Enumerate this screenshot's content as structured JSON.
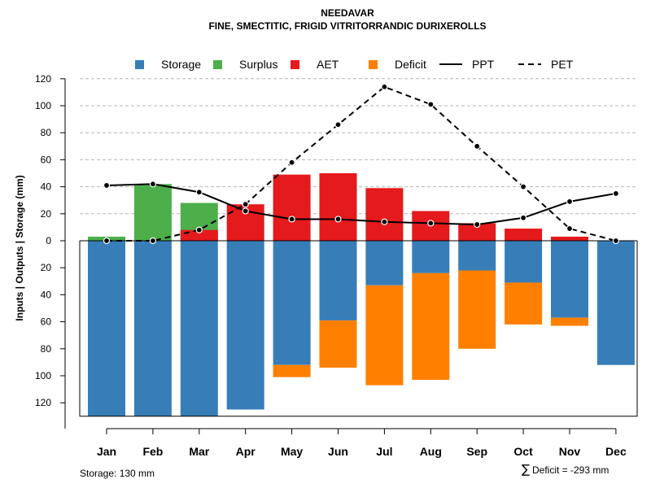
{
  "chart_data": {
    "type": "bar",
    "title": "NEEDAVAR",
    "subtitle": "FINE, SMECTITIC, FRIGID VITRITORRANDIC DURIXEROLLS",
    "ylabel": "Inputs | Outputs | Storage    (mm)",
    "ylim": [
      -130,
      120
    ],
    "yticks": [
      {
        "value": 120,
        "label": "120"
      },
      {
        "value": 100,
        "label": "100"
      },
      {
        "value": 80,
        "label": "80"
      },
      {
        "value": 60,
        "label": "60"
      },
      {
        "value": 40,
        "label": "40"
      },
      {
        "value": 20,
        "label": "20"
      },
      {
        "value": 0,
        "label": "0"
      },
      {
        "value": -20,
        "label": "20"
      },
      {
        "value": -40,
        "label": "40"
      },
      {
        "value": -60,
        "label": "60"
      },
      {
        "value": -80,
        "label": "80"
      },
      {
        "value": -100,
        "label": "100"
      },
      {
        "value": -120,
        "label": "120"
      }
    ],
    "categories": [
      "Jan",
      "Feb",
      "Mar",
      "Apr",
      "May",
      "Jun",
      "Jul",
      "Aug",
      "Sep",
      "Oct",
      "Nov",
      "Dec"
    ],
    "grid": true,
    "legend_position": "top",
    "series": [
      {
        "name": "Storage",
        "kind": "bar",
        "color": "#377EB8",
        "values": [
          130,
          130,
          130,
          125,
          92,
          59,
          33,
          24,
          22,
          31,
          57,
          92
        ]
      },
      {
        "name": "Surplus",
        "kind": "bar",
        "color": "#4DAF4A",
        "values": [
          3,
          42,
          28,
          0,
          0,
          0,
          0,
          0,
          0,
          0,
          0,
          0
        ]
      },
      {
        "name": "AET",
        "kind": "bar",
        "color": "#E41A1C",
        "values": [
          0,
          0,
          8,
          27,
          49,
          50,
          39,
          22,
          13,
          9,
          3,
          0
        ]
      },
      {
        "name": "Deficit",
        "kind": "bar",
        "color": "#FF7F00",
        "values": [
          0,
          0,
          0,
          0,
          9,
          35,
          74,
          79,
          58,
          31,
          6,
          0
        ]
      },
      {
        "name": "PPT",
        "kind": "line",
        "style": "solid",
        "color": "#000000",
        "values": [
          41,
          42,
          36,
          22,
          16,
          16,
          14,
          13,
          12,
          17,
          29,
          35
        ]
      },
      {
        "name": "PET",
        "kind": "line",
        "style": "dashed",
        "color": "#000000",
        "values": [
          0,
          0,
          8,
          27,
          58,
          86,
          114,
          101,
          70,
          40,
          9,
          0
        ]
      }
    ],
    "annotations": {
      "storage": "Storage: 130 mm",
      "deficit_symbol": "∑",
      "deficit": "Deficit = -293 mm"
    }
  }
}
